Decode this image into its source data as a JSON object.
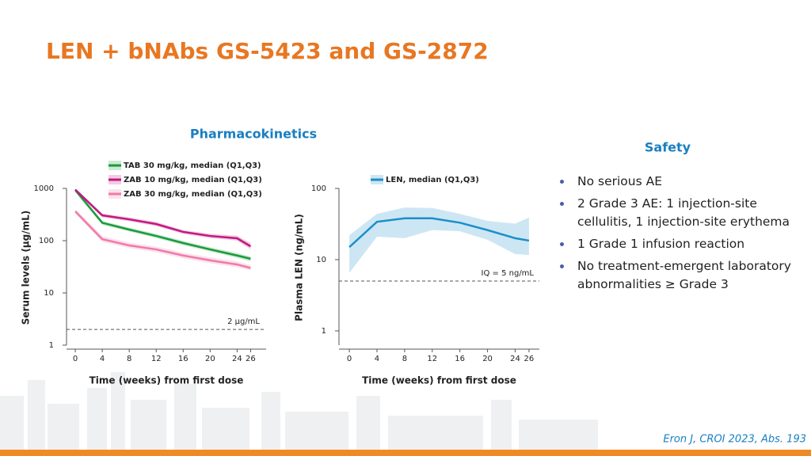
{
  "title": "LEN + bNAbs GS-5423 and GS-2872",
  "pk_heading": "Pharmacokinetics",
  "safety": {
    "heading": "Safety",
    "bullets": [
      "No serious AE",
      "2 Grade 3 AE: 1 injection-site cellulitis, 1 injection-site erythema",
      "1 Grade 1 infusion reaction",
      "No treatment-emergent laboratory abnormalities ≥ Grade 3"
    ]
  },
  "citation": "Eron J, CROI 2023, Abs. 193",
  "chart_data": [
    {
      "type": "line",
      "y_scale": "log",
      "x_label": "Time (weeks) from first dose",
      "y_label": "Serum levels (µg/mL)",
      "x": [
        0,
        4,
        8,
        12,
        16,
        20,
        24,
        26
      ],
      "xlim": [
        -1.3,
        28.3
      ],
      "xticks": [
        0,
        4,
        8,
        12,
        16,
        20,
        24,
        26
      ],
      "ylim": [
        1,
        1000
      ],
      "yticks": [
        1,
        10,
        100,
        1000
      ],
      "reference": {
        "value": 2,
        "label": "2 µg/mL"
      },
      "series": [
        {
          "name": "TAB 30 mg/kg, median (Q1,Q3)",
          "color": "#1a9a3a",
          "values": [
            930,
            220,
            163,
            123,
            90,
            68,
            52,
            45
          ],
          "lower": [
            850,
            200,
            150,
            112,
            82,
            62,
            47,
            40
          ],
          "upper": [
            1000,
            240,
            178,
            135,
            99,
            75,
            58,
            50
          ]
        },
        {
          "name": "ZAB 10 mg/kg, median (Q1,Q3)",
          "color": "#c2187f",
          "values": [
            950,
            305,
            256,
            208,
            147,
            123,
            111,
            78
          ],
          "lower": [
            880,
            280,
            235,
            190,
            135,
            112,
            100,
            68
          ],
          "upper": [
            1000,
            330,
            280,
            228,
            160,
            135,
            125,
            90
          ]
        },
        {
          "name": "ZAB 30 mg/kg, median (Q1,Q3)",
          "color": "#f07aa8",
          "values": [
            363,
            107,
            81,
            68,
            52,
            42,
            35,
            30
          ],
          "lower": [
            330,
            95,
            72,
            60,
            46,
            37,
            31,
            27
          ],
          "upper": [
            400,
            122,
            92,
            77,
            59,
            48,
            40,
            34
          ]
        }
      ]
    },
    {
      "type": "line",
      "y_scale": "log",
      "x_label": "Time (weeks) from first dose",
      "y_label": "Plasma LEN (ng/mL)",
      "x": [
        0,
        4,
        8,
        12,
        16,
        20,
        24,
        26
      ],
      "xlim": [
        -1.5,
        27.5
      ],
      "xticks": [
        0,
        4,
        8,
        12,
        16,
        20,
        24,
        26
      ],
      "ylim": [
        0.63,
        100
      ],
      "yticks": [
        1,
        10,
        100
      ],
      "reference": {
        "value": 5,
        "label": "IQ = 5 ng/mL"
      },
      "series": [
        {
          "name": "LEN, median (Q1,Q3)",
          "color": "#1a8fc9",
          "values": [
            15,
            34,
            38,
            38,
            33,
            26,
            20,
            18.5
          ],
          "lower": [
            6.5,
            21,
            20,
            26,
            25,
            19,
            12,
            11.6
          ],
          "upper": [
            22,
            44,
            54,
            53,
            44,
            35,
            32,
            39
          ]
        }
      ]
    }
  ]
}
